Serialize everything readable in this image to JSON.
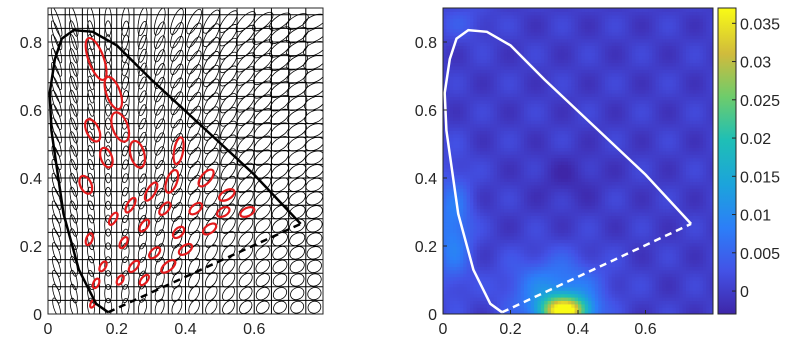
{
  "chart_data": [
    {
      "type": "line",
      "xlim": [
        0,
        0.8
      ],
      "ylim": [
        0,
        0.9
      ],
      "x_ticks": [
        "0",
        "0.2",
        "0.4",
        "0.6"
      ],
      "y_ticks": [
        "0",
        "0.2",
        "0.4",
        "0.6",
        "0.8"
      ],
      "grid": true,
      "spectral_locus": [
        [
          0.175,
          0.005
        ],
        [
          0.14,
          0.03
        ],
        [
          0.09,
          0.13
        ],
        [
          0.045,
          0.295
        ],
        [
          0.01,
          0.54
        ],
        [
          0.005,
          0.65
        ],
        [
          0.02,
          0.75
        ],
        [
          0.04,
          0.81
        ],
        [
          0.075,
          0.835
        ],
        [
          0.13,
          0.83
        ],
        [
          0.2,
          0.79
        ],
        [
          0.3,
          0.69
        ],
        [
          0.45,
          0.55
        ],
        [
          0.6,
          0.41
        ],
        [
          0.735,
          0.265
        ]
      ],
      "purple_line": [
        [
          0.175,
          0.005
        ],
        [
          0.735,
          0.265
        ]
      ],
      "red_ellipses": [
        {
          "x": 0.14,
          "y": 0.75,
          "rx": 0.022,
          "ry": 0.065,
          "angle": -20
        },
        {
          "x": 0.19,
          "y": 0.65,
          "rx": 0.02,
          "ry": 0.05,
          "angle": -20
        },
        {
          "x": 0.21,
          "y": 0.55,
          "rx": 0.022,
          "ry": 0.045,
          "angle": -20
        },
        {
          "x": 0.13,
          "y": 0.54,
          "rx": 0.018,
          "ry": 0.035,
          "angle": -25
        },
        {
          "x": 0.26,
          "y": 0.47,
          "rx": 0.02,
          "ry": 0.04,
          "angle": -15
        },
        {
          "x": 0.17,
          "y": 0.46,
          "rx": 0.016,
          "ry": 0.03,
          "angle": -20
        },
        {
          "x": 0.38,
          "y": 0.48,
          "rx": 0.013,
          "ry": 0.04,
          "angle": 10
        },
        {
          "x": 0.36,
          "y": 0.39,
          "rx": 0.015,
          "ry": 0.035,
          "angle": 20
        },
        {
          "x": 0.11,
          "y": 0.38,
          "rx": 0.016,
          "ry": 0.028,
          "angle": -25
        },
        {
          "x": 0.46,
          "y": 0.4,
          "rx": 0.014,
          "ry": 0.03,
          "angle": 40
        },
        {
          "x": 0.3,
          "y": 0.36,
          "rx": 0.012,
          "ry": 0.03,
          "angle": 30
        },
        {
          "x": 0.52,
          "y": 0.35,
          "rx": 0.013,
          "ry": 0.025,
          "angle": 60
        },
        {
          "x": 0.24,
          "y": 0.32,
          "rx": 0.01,
          "ry": 0.024,
          "angle": 30
        },
        {
          "x": 0.34,
          "y": 0.31,
          "rx": 0.011,
          "ry": 0.022,
          "angle": 40
        },
        {
          "x": 0.43,
          "y": 0.31,
          "rx": 0.012,
          "ry": 0.022,
          "angle": 50
        },
        {
          "x": 0.58,
          "y": 0.3,
          "rx": 0.012,
          "ry": 0.022,
          "angle": 65
        },
        {
          "x": 0.51,
          "y": 0.3,
          "rx": 0.012,
          "ry": 0.02,
          "angle": 60
        },
        {
          "x": 0.19,
          "y": 0.28,
          "rx": 0.009,
          "ry": 0.02,
          "angle": 30
        },
        {
          "x": 0.28,
          "y": 0.26,
          "rx": 0.01,
          "ry": 0.02,
          "angle": 35
        },
        {
          "x": 0.38,
          "y": 0.24,
          "rx": 0.012,
          "ry": 0.02,
          "angle": 45
        },
        {
          "x": 0.47,
          "y": 0.25,
          "rx": 0.012,
          "ry": 0.022,
          "angle": 55
        },
        {
          "x": 0.12,
          "y": 0.22,
          "rx": 0.009,
          "ry": 0.018,
          "angle": 20
        },
        {
          "x": 0.22,
          "y": 0.21,
          "rx": 0.009,
          "ry": 0.018,
          "angle": 30
        },
        {
          "x": 0.31,
          "y": 0.18,
          "rx": 0.011,
          "ry": 0.02,
          "angle": 45
        },
        {
          "x": 0.4,
          "y": 0.19,
          "rx": 0.012,
          "ry": 0.022,
          "angle": 55
        },
        {
          "x": 0.16,
          "y": 0.14,
          "rx": 0.008,
          "ry": 0.016,
          "angle": 30
        },
        {
          "x": 0.25,
          "y": 0.14,
          "rx": 0.01,
          "ry": 0.02,
          "angle": 40
        },
        {
          "x": 0.35,
          "y": 0.14,
          "rx": 0.012,
          "ry": 0.025,
          "angle": 50
        },
        {
          "x": 0.14,
          "y": 0.09,
          "rx": 0.008,
          "ry": 0.015,
          "angle": 25
        },
        {
          "x": 0.21,
          "y": 0.1,
          "rx": 0.008,
          "ry": 0.015,
          "angle": 30
        },
        {
          "x": 0.28,
          "y": 0.1,
          "rx": 0.009,
          "ry": 0.018,
          "angle": 40
        },
        {
          "x": 0.13,
          "y": 0.03,
          "rx": 0.006,
          "ry": 0.012,
          "angle": 25
        }
      ]
    },
    {
      "type": "heatmap",
      "xlim": [
        0,
        0.8
      ],
      "ylim": [
        0,
        0.9
      ],
      "x_ticks": [
        "0",
        "0.2",
        "0.4",
        "0.6"
      ],
      "y_ticks": [
        "0",
        "0.2",
        "0.4",
        "0.6",
        "0.8"
      ],
      "colorbar_ticks": [
        "0",
        "0.005",
        "0.01",
        "0.015",
        "0.02",
        "0.025",
        "0.03",
        "0.035"
      ],
      "colorbar_range": [
        -0.003,
        0.037
      ],
      "colormap": "parula",
      "background_value": 0.0,
      "hotspots": [
        {
          "x": 0.36,
          "y": 0.01,
          "value": 0.035,
          "sx": 0.05,
          "sy": 0.03
        },
        {
          "x": 0.33,
          "y": 0.07,
          "value": 0.01,
          "sx": 0.1,
          "sy": 0.07
        },
        {
          "x": 0.03,
          "y": 0.25,
          "value": 0.009,
          "sx": 0.04,
          "sy": 0.12
        },
        {
          "x": 0.37,
          "y": 0.4,
          "value": -0.002,
          "sx": 0.07,
          "sy": 0.05
        },
        {
          "x": 0.06,
          "y": 0.86,
          "value": 0.003,
          "sx": 0.06,
          "sy": 0.04
        }
      ],
      "spectral_locus": [
        [
          0.175,
          0.005
        ],
        [
          0.14,
          0.03
        ],
        [
          0.09,
          0.13
        ],
        [
          0.045,
          0.295
        ],
        [
          0.01,
          0.54
        ],
        [
          0.005,
          0.65
        ],
        [
          0.02,
          0.75
        ],
        [
          0.04,
          0.81
        ],
        [
          0.075,
          0.835
        ],
        [
          0.13,
          0.83
        ],
        [
          0.2,
          0.79
        ],
        [
          0.3,
          0.69
        ],
        [
          0.45,
          0.55
        ],
        [
          0.6,
          0.41
        ],
        [
          0.735,
          0.265
        ]
      ],
      "purple_line": [
        [
          0.175,
          0.005
        ],
        [
          0.735,
          0.265
        ]
      ]
    }
  ],
  "colors": {
    "locus_left": "#000000",
    "ellipse_red": "#e31a1c",
    "locus_right": "#ffffff"
  }
}
